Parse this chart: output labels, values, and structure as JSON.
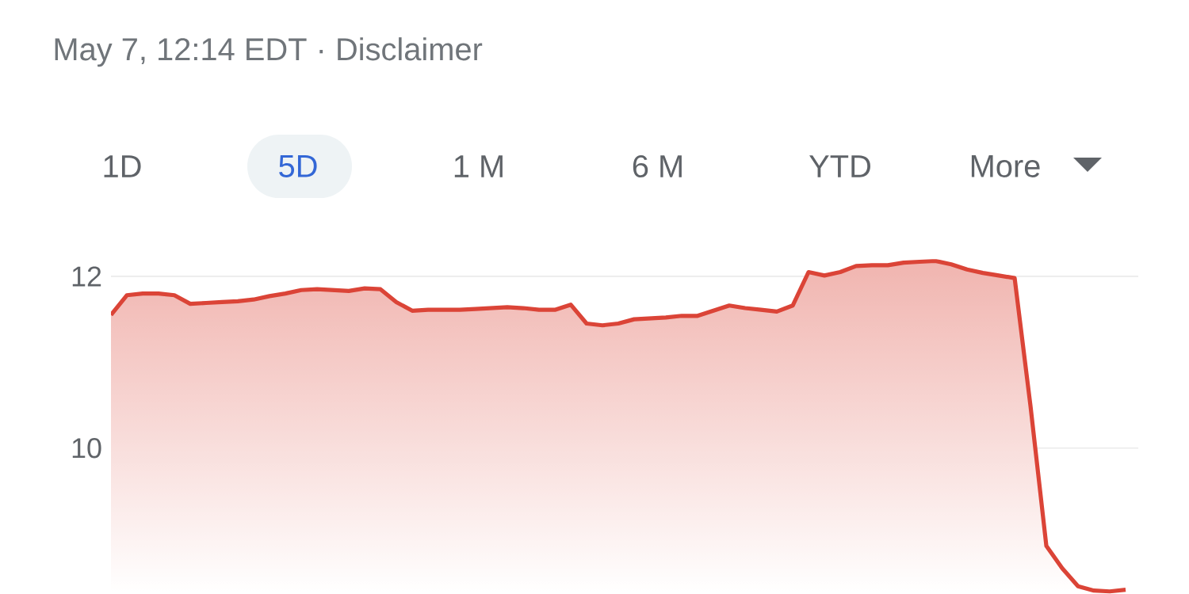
{
  "chart_data": {
    "type": "line",
    "subtitle": "May 7, 12:14 EDT · Disclaimer",
    "annotations": [
      "1D",
      "5D",
      "1 M",
      "6 M",
      "YTD",
      "More"
    ],
    "categories": [
      null,
      null,
      null,
      null,
      null,
      null,
      null,
      null,
      null,
      null,
      null,
      null,
      null,
      null,
      null,
      null,
      null,
      null,
      null,
      null,
      null,
      null,
      null,
      null,
      null,
      null,
      null,
      null,
      null,
      null,
      null,
      null,
      null,
      null,
      null,
      null,
      null,
      null,
      null,
      null,
      null,
      null,
      null,
      null,
      null,
      null,
      null,
      null,
      null,
      null,
      null,
      null,
      null,
      null,
      null,
      null,
      null,
      null,
      null,
      null,
      null,
      null,
      null,
      null,
      null
    ],
    "values": [
      11.55,
      11.78,
      11.8,
      11.8,
      11.78,
      11.68,
      11.69,
      11.7,
      11.71,
      11.73,
      11.77,
      11.8,
      11.84,
      11.85,
      11.84,
      11.83,
      11.86,
      11.85,
      11.7,
      11.6,
      11.61,
      11.61,
      11.61,
      11.62,
      11.63,
      11.64,
      11.63,
      11.61,
      11.61,
      11.67,
      11.45,
      11.43,
      11.45,
      11.5,
      11.51,
      11.52,
      11.54,
      11.54,
      11.6,
      11.66,
      11.63,
      11.61,
      11.59,
      11.66,
      12.05,
      12.01,
      12.05,
      12.12,
      12.13,
      12.13,
      12.16,
      12.17,
      12.18,
      12.14,
      12.08,
      12.04,
      12.01,
      11.98,
      10.49,
      8.86,
      8.6,
      8.39,
      8.34,
      8.33,
      8.35
    ],
    "color": "#db4437",
    "ylim": [
      8.3,
      12.2
    ],
    "yticks": [
      10,
      12
    ],
    "grid": "y"
  }
}
